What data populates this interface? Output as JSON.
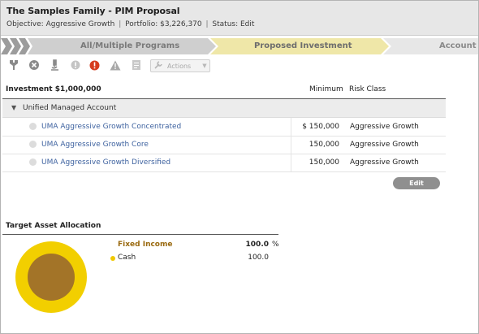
{
  "header": {
    "title": "The Samples Family - PIM Proposal",
    "objective": "Objective: Aggressive Growth",
    "portfolio": "Portfolio: $3,226,370",
    "status": "Status: Edit",
    "separator": "|"
  },
  "steps": [
    {
      "label": "All/Multiple Programs",
      "state": "completed",
      "color": "#cfcfcf"
    },
    {
      "label": "Proposed Investment",
      "state": "current",
      "color": "#efe7a8"
    },
    {
      "label": "Account S",
      "state": "upcoming",
      "color": "#e7e7e7"
    }
  ],
  "toolbar": {
    "icons": [
      "tools-icon",
      "cancel-icon",
      "microscope-icon",
      "info-icon",
      "alert-icon",
      "warning-icon",
      "document-icon"
    ],
    "actions_label": "Actions"
  },
  "investment_table": {
    "title": "Investment $1,000,000",
    "col_minimum": "Minimum",
    "col_risk": "Risk Class",
    "group_label": "Unified Managed Account",
    "rows": [
      {
        "name": "UMA Aggressive Growth Concentrated",
        "minimum": "$ 150,000",
        "risk": "Aggressive Growth"
      },
      {
        "name": "UMA Aggressive Growth Core",
        "minimum": "150,000",
        "risk": "Aggressive Growth"
      },
      {
        "name": "UMA Aggressive Growth Diversified",
        "minimum": "150,000",
        "risk": "Aggressive Growth"
      }
    ],
    "edit_label": "Edit"
  },
  "allocation": {
    "title": "Target Asset Allocation",
    "category": "Fixed Income",
    "category_value": "100.0",
    "unit": "%",
    "item": "Cash",
    "item_value": "100.0",
    "colors": {
      "outer": "#f2cf00",
      "inner": "#a37428"
    }
  }
}
